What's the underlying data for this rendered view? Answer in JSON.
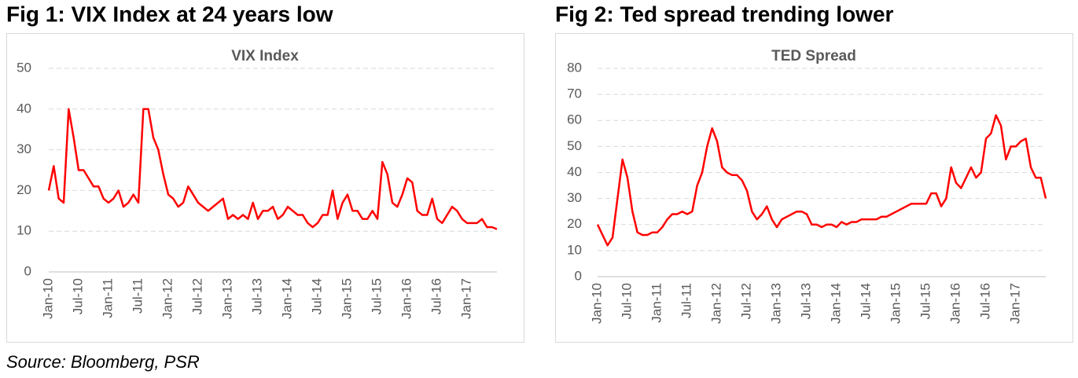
{
  "headings": [
    "Fig 1: VIX Index at 24 years low",
    "Fig 2: Ted spread trending lower"
  ],
  "source": "Source: Bloomberg, PSR",
  "chart_data": [
    {
      "type": "line",
      "title": "VIX Index",
      "color": "#ff0000",
      "grid": true,
      "ylim": [
        0,
        50
      ],
      "yticks": [
        0,
        10,
        20,
        30,
        40,
        50
      ],
      "categories": [
        "Jan-10",
        null,
        null,
        null,
        null,
        null,
        "Jul-10",
        null,
        null,
        null,
        null,
        null,
        "Jan-11",
        null,
        null,
        null,
        null,
        null,
        "Jul-11",
        null,
        null,
        null,
        null,
        null,
        "Jan-12",
        null,
        null,
        null,
        null,
        null,
        "Jul-12",
        null,
        null,
        null,
        null,
        null,
        "Jan-13",
        null,
        null,
        null,
        null,
        null,
        "Jul-13",
        null,
        null,
        null,
        null,
        null,
        "Jan-14",
        null,
        null,
        null,
        null,
        null,
        "Jul-14",
        null,
        null,
        null,
        null,
        null,
        "Jan-15",
        null,
        null,
        null,
        null,
        null,
        "Jul-15",
        null,
        null,
        null,
        null,
        null,
        "Jan-16",
        null,
        null,
        null,
        null,
        null,
        "Jul-16",
        null,
        null,
        null,
        null,
        null,
        "Jan-17",
        null,
        null,
        null,
        null,
        null,
        null
      ],
      "values": [
        20,
        26,
        18,
        17,
        40,
        33,
        25,
        25,
        23,
        21,
        21,
        18,
        17,
        18,
        20,
        16,
        17,
        19,
        17,
        40,
        40,
        33,
        30,
        24,
        19,
        18,
        16,
        17,
        21,
        19,
        17,
        16,
        15,
        16,
        17,
        18,
        13,
        14,
        13,
        14,
        13,
        17,
        13,
        15,
        15,
        16,
        13,
        14,
        16,
        15,
        14,
        14,
        12,
        11,
        12,
        14,
        14,
        20,
        13,
        17,
        19,
        15,
        15,
        13,
        13,
        15,
        13,
        27,
        24,
        17,
        16,
        19,
        23,
        22,
        15,
        14,
        14,
        18,
        13,
        12,
        14,
        16,
        15,
        13,
        12,
        12,
        12,
        13,
        11,
        11,
        10.5
      ]
    },
    {
      "type": "line",
      "title": "TED Spread",
      "color": "#ff0000",
      "grid": true,
      "ylim": [
        0,
        80
      ],
      "yticks": [
        0,
        10,
        20,
        30,
        40,
        50,
        60,
        70,
        80
      ],
      "categories": [
        "Jan-10",
        null,
        null,
        null,
        null,
        null,
        "Jul-10",
        null,
        null,
        null,
        null,
        null,
        "Jan-11",
        null,
        null,
        null,
        null,
        null,
        "Jul-11",
        null,
        null,
        null,
        null,
        null,
        "Jan-12",
        null,
        null,
        null,
        null,
        null,
        "Jul-12",
        null,
        null,
        null,
        null,
        null,
        "Jan-13",
        null,
        null,
        null,
        null,
        null,
        "Jul-13",
        null,
        null,
        null,
        null,
        null,
        "Jan-14",
        null,
        null,
        null,
        null,
        null,
        "Jul-14",
        null,
        null,
        null,
        null,
        null,
        "Jan-15",
        null,
        null,
        null,
        null,
        null,
        "Jul-15",
        null,
        null,
        null,
        null,
        null,
        "Jan-16",
        null,
        null,
        null,
        null,
        null,
        "Jul-16",
        null,
        null,
        null,
        null,
        null,
        "Jan-17",
        null,
        null,
        null,
        null,
        null,
        null
      ],
      "values": [
        20,
        16,
        12,
        15,
        30,
        45,
        38,
        25,
        17,
        16,
        16,
        17,
        17,
        19,
        22,
        24,
        24,
        25,
        24,
        25,
        35,
        40,
        50,
        57,
        52,
        42,
        40,
        39,
        39,
        37,
        33,
        25,
        22,
        24,
        27,
        22,
        19,
        22,
        23,
        24,
        25,
        25,
        24,
        20,
        20,
        19,
        20,
        20,
        19,
        21,
        20,
        21,
        21,
        22,
        22,
        22,
        22,
        23,
        23,
        24,
        25,
        26,
        27,
        28,
        28,
        28,
        28,
        32,
        32,
        27,
        30,
        42,
        36,
        34,
        38,
        42,
        38,
        40,
        53,
        55,
        62,
        58,
        45,
        50,
        50,
        52,
        53,
        42,
        38,
        38,
        30
      ]
    }
  ]
}
